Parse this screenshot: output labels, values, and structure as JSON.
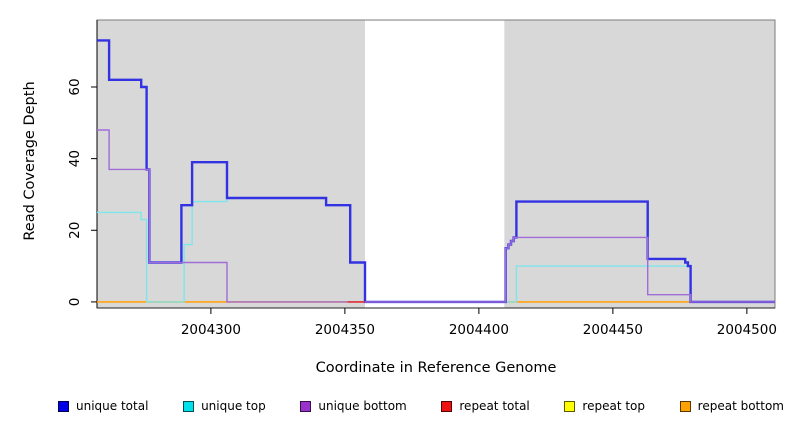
{
  "figure": {
    "xlabel": "Coordinate in Reference Genome",
    "ylabel": "Read Coverage Depth"
  },
  "legend": {
    "items": [
      {
        "label": "unique total",
        "color": "#0000e8"
      },
      {
        "label": "unique top",
        "color": "#00e0ea"
      },
      {
        "label": "unique bottom",
        "color": "#9932cc"
      },
      {
        "label": "repeat total",
        "color": "#ee1111"
      },
      {
        "label": "repeat top",
        "color": "#ffff00"
      },
      {
        "label": "repeat bottom",
        "color": "#ffa200"
      }
    ]
  },
  "chart_data": {
    "type": "line",
    "subtype": "step-coverage",
    "title": "",
    "xlabel": "Coordinate in Reference Genome",
    "ylabel": "Read Coverage Depth",
    "xlim": [
      2004257.5,
      2004510.5
    ],
    "ylim": [
      -1.7,
      78.7
    ],
    "x_ticks": [
      2004300,
      2004350,
      2004400,
      2004450,
      2004500
    ],
    "y_ticks": [
      0,
      20,
      40,
      60
    ],
    "grid": false,
    "legend_position": "bottom",
    "panel_color": "#d8d8d8",
    "gap_region": {
      "x_range": [
        2004357.5,
        2004409.5
      ],
      "color": "#ffffff"
    },
    "series": [
      {
        "name": "repeat top",
        "color": "#ffff00",
        "width": 1,
        "points": [
          [
            2004257.5,
            0
          ],
          [
            2004479,
            0
          ]
        ]
      },
      {
        "name": "repeat bottom",
        "color": "#ffa216",
        "width": 1.6,
        "points": [
          [
            2004257.5,
            0
          ],
          [
            2004479,
            0
          ]
        ]
      },
      {
        "name": "unique top",
        "color": "#7de6ea",
        "width": 1.4,
        "points": [
          [
            2004257.5,
            25
          ],
          [
            2004274,
            23
          ],
          [
            2004276,
            0
          ],
          [
            2004290,
            16
          ],
          [
            2004293,
            28
          ],
          [
            2004306,
            29
          ],
          [
            2004343,
            27
          ],
          [
            2004352,
            11
          ],
          [
            2004357.5,
            0
          ],
          [
            2004414,
            10
          ],
          [
            2004479,
            0
          ],
          [
            2004510.5,
            0
          ]
        ]
      },
      {
        "name": "unique total",
        "color": "#3232e2",
        "width": 2.4,
        "points": [
          [
            2004257.5,
            73
          ],
          [
            2004262,
            62
          ],
          [
            2004274,
            60
          ],
          [
            2004276,
            37
          ],
          [
            2004277,
            11
          ],
          [
            2004289,
            27
          ],
          [
            2004293,
            39
          ],
          [
            2004306,
            29
          ],
          [
            2004343,
            27
          ],
          [
            2004352,
            11
          ],
          [
            2004357.5,
            0
          ],
          [
            2004410,
            15
          ],
          [
            2004411,
            16
          ],
          [
            2004412,
            17
          ],
          [
            2004413,
            18
          ],
          [
            2004414,
            28
          ],
          [
            2004463,
            12
          ],
          [
            2004477,
            11
          ],
          [
            2004478,
            10
          ],
          [
            2004479,
            0
          ],
          [
            2004510.5,
            0
          ]
        ]
      },
      {
        "name": "unique bottom",
        "color": "#9f6cd8",
        "width": 1.4,
        "points": [
          [
            2004257.5,
            48
          ],
          [
            2004262,
            37
          ],
          [
            2004277,
            11
          ],
          [
            2004306,
            0
          ],
          [
            2004410,
            15
          ],
          [
            2004411,
            16
          ],
          [
            2004412,
            17
          ],
          [
            2004413,
            18
          ],
          [
            2004463,
            2
          ],
          [
            2004479,
            0
          ],
          [
            2004510.5,
            0
          ]
        ]
      },
      {
        "name": "repeat total",
        "color": "#e02838",
        "width": 1.4,
        "points": [
          [
            2004351,
            0
          ],
          [
            2004357.5,
            0
          ]
        ]
      }
    ]
  }
}
